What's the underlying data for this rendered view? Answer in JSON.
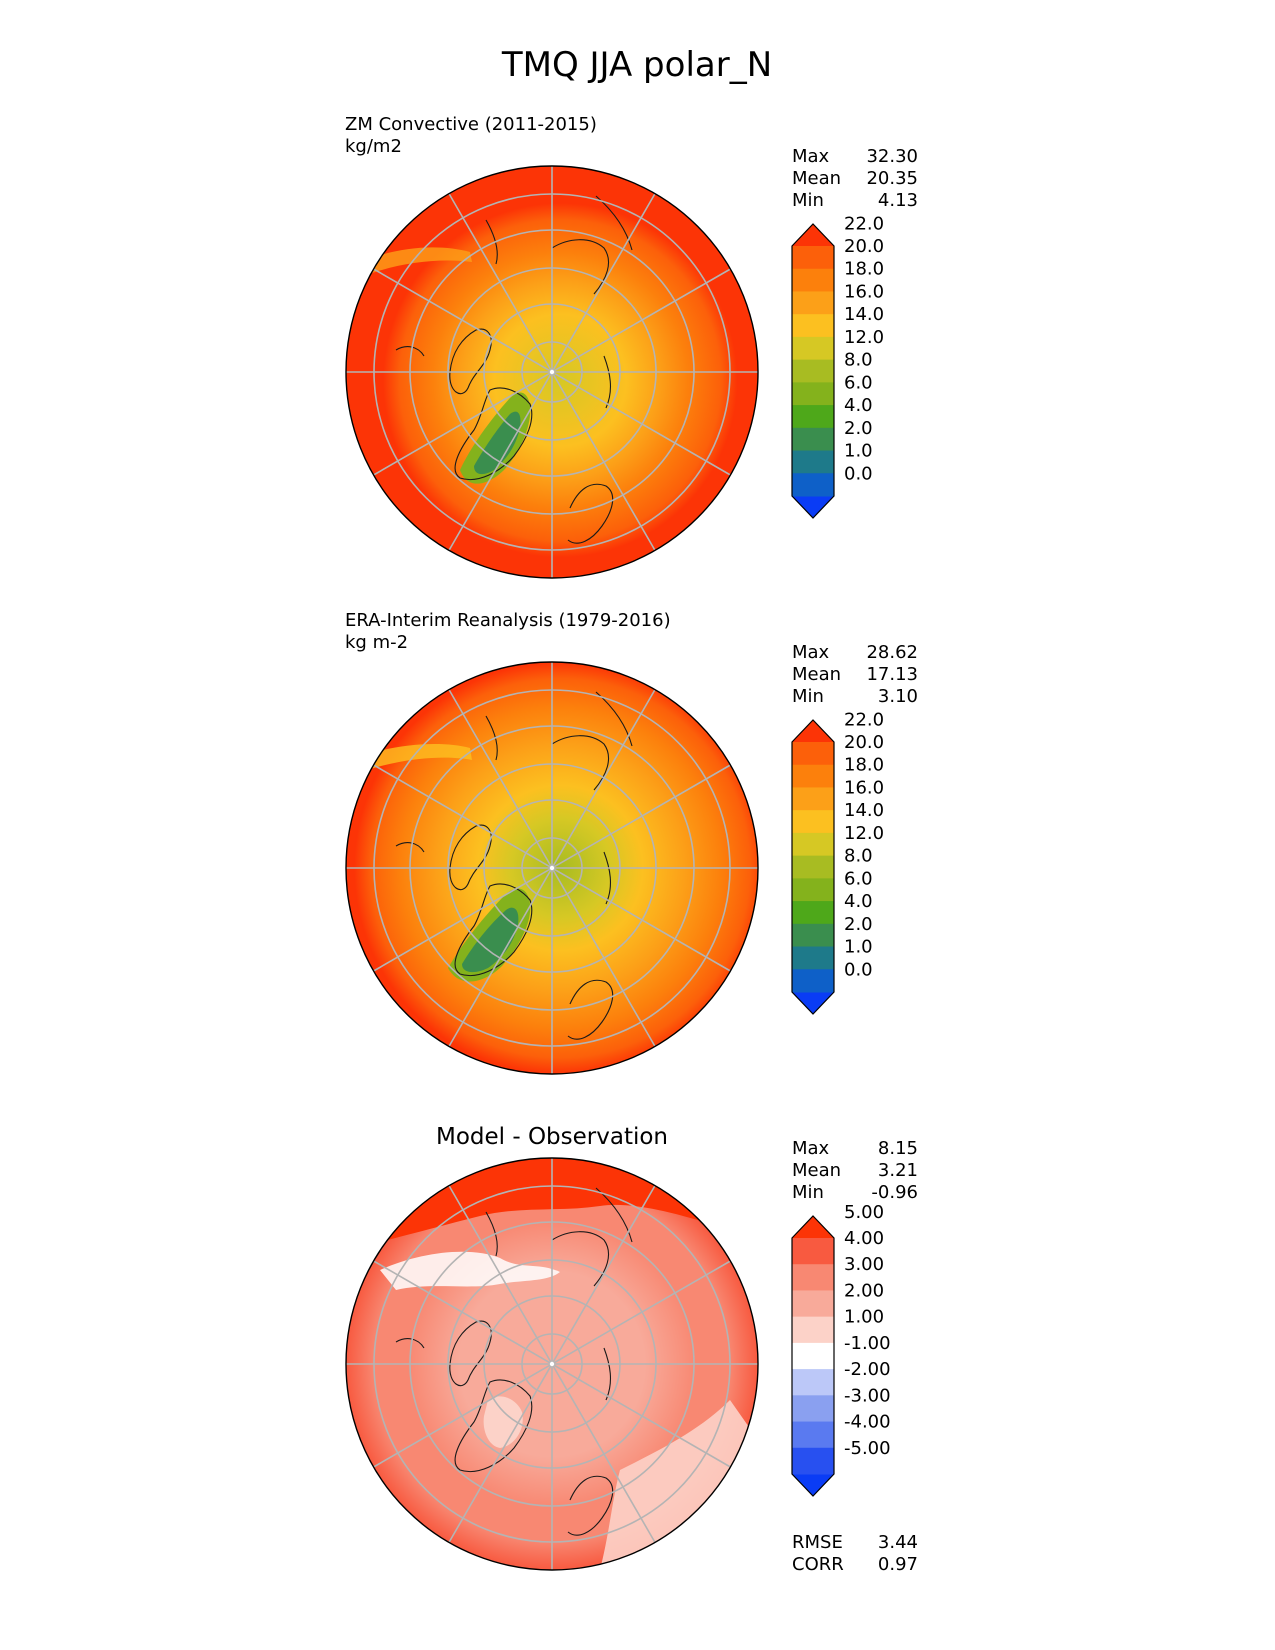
{
  "figure": {
    "title": "TMQ JJA polar_N"
  },
  "chart_data": [
    {
      "type": "heatmap",
      "projection": "north polar stereographic",
      "title": "ZM Convective (2011-2015)",
      "units": "kg/m2",
      "stats": [
        {
          "label": "Max",
          "value": "32.30"
        },
        {
          "label": "Mean",
          "value": "20.35"
        },
        {
          "label": "Min",
          "value": "4.13"
        }
      ],
      "colorbar": {
        "levels": [
          "0.0",
          "1.0",
          "2.0",
          "4.0",
          "6.0",
          "8.0",
          "12.0",
          "14.0",
          "16.0",
          "18.0",
          "20.0",
          "22.0"
        ],
        "colors": [
          "#0a3cf5",
          "#0e60c8",
          "#1e7a8a",
          "#3a8e4e",
          "#4ea81a",
          "#84b21c",
          "#a8bc22",
          "#d6c824",
          "#fcc020",
          "#fca018",
          "#fc800c",
          "#fc600a",
          "#fc3406"
        ],
        "extend": "both"
      },
      "field_samples": {
        "pole": 14.5,
        "greenland": 6.0,
        "midlatitude_rim": 24.0
      }
    },
    {
      "type": "heatmap",
      "projection": "north polar stereographic",
      "title": "ERA-Interim Reanalysis (1979-2016)",
      "units": "kg m-2",
      "stats": [
        {
          "label": "Max",
          "value": "28.62"
        },
        {
          "label": "Mean",
          "value": "17.13"
        },
        {
          "label": "Min",
          "value": "3.10"
        }
      ],
      "colorbar": {
        "levels": [
          "0.0",
          "1.0",
          "2.0",
          "4.0",
          "6.0",
          "8.0",
          "12.0",
          "14.0",
          "16.0",
          "18.0",
          "20.0",
          "22.0"
        ],
        "colors": [
          "#0a3cf5",
          "#0e60c8",
          "#1e7a8a",
          "#3a8e4e",
          "#4ea81a",
          "#84b21c",
          "#a8bc22",
          "#d6c824",
          "#fcc020",
          "#fca018",
          "#fc800c",
          "#fc600a",
          "#fc3406"
        ],
        "extend": "both"
      },
      "field_samples": {
        "pole": 11.0,
        "greenland": 5.0,
        "midlatitude_rim": 21.0
      }
    },
    {
      "type": "heatmap",
      "projection": "north polar stereographic",
      "title": "Model - Observation",
      "stats": [
        {
          "label": "Max",
          "value": "8.15"
        },
        {
          "label": "Mean",
          "value": "3.21"
        },
        {
          "label": "Min",
          "value": "-0.96"
        }
      ],
      "colorbar": {
        "levels": [
          "-5.00",
          "-4.00",
          "-3.00",
          "-2.00",
          "-1.00",
          "1.00",
          "2.00",
          "3.00",
          "4.00",
          "5.00"
        ],
        "colors": [
          "#0a3cf5",
          "#2850f0",
          "#5a7af0",
          "#8aa0f0",
          "#bcc8f8",
          "#ffffff",
          "#fcd2c8",
          "#f8aa9a",
          "#f88872",
          "#f85a40",
          "#fc3406"
        ],
        "extend": "both"
      },
      "metrics": [
        {
          "label": "RMSE",
          "value": "3.44"
        },
        {
          "label": "CORR",
          "value": "0.97"
        }
      ]
    }
  ]
}
